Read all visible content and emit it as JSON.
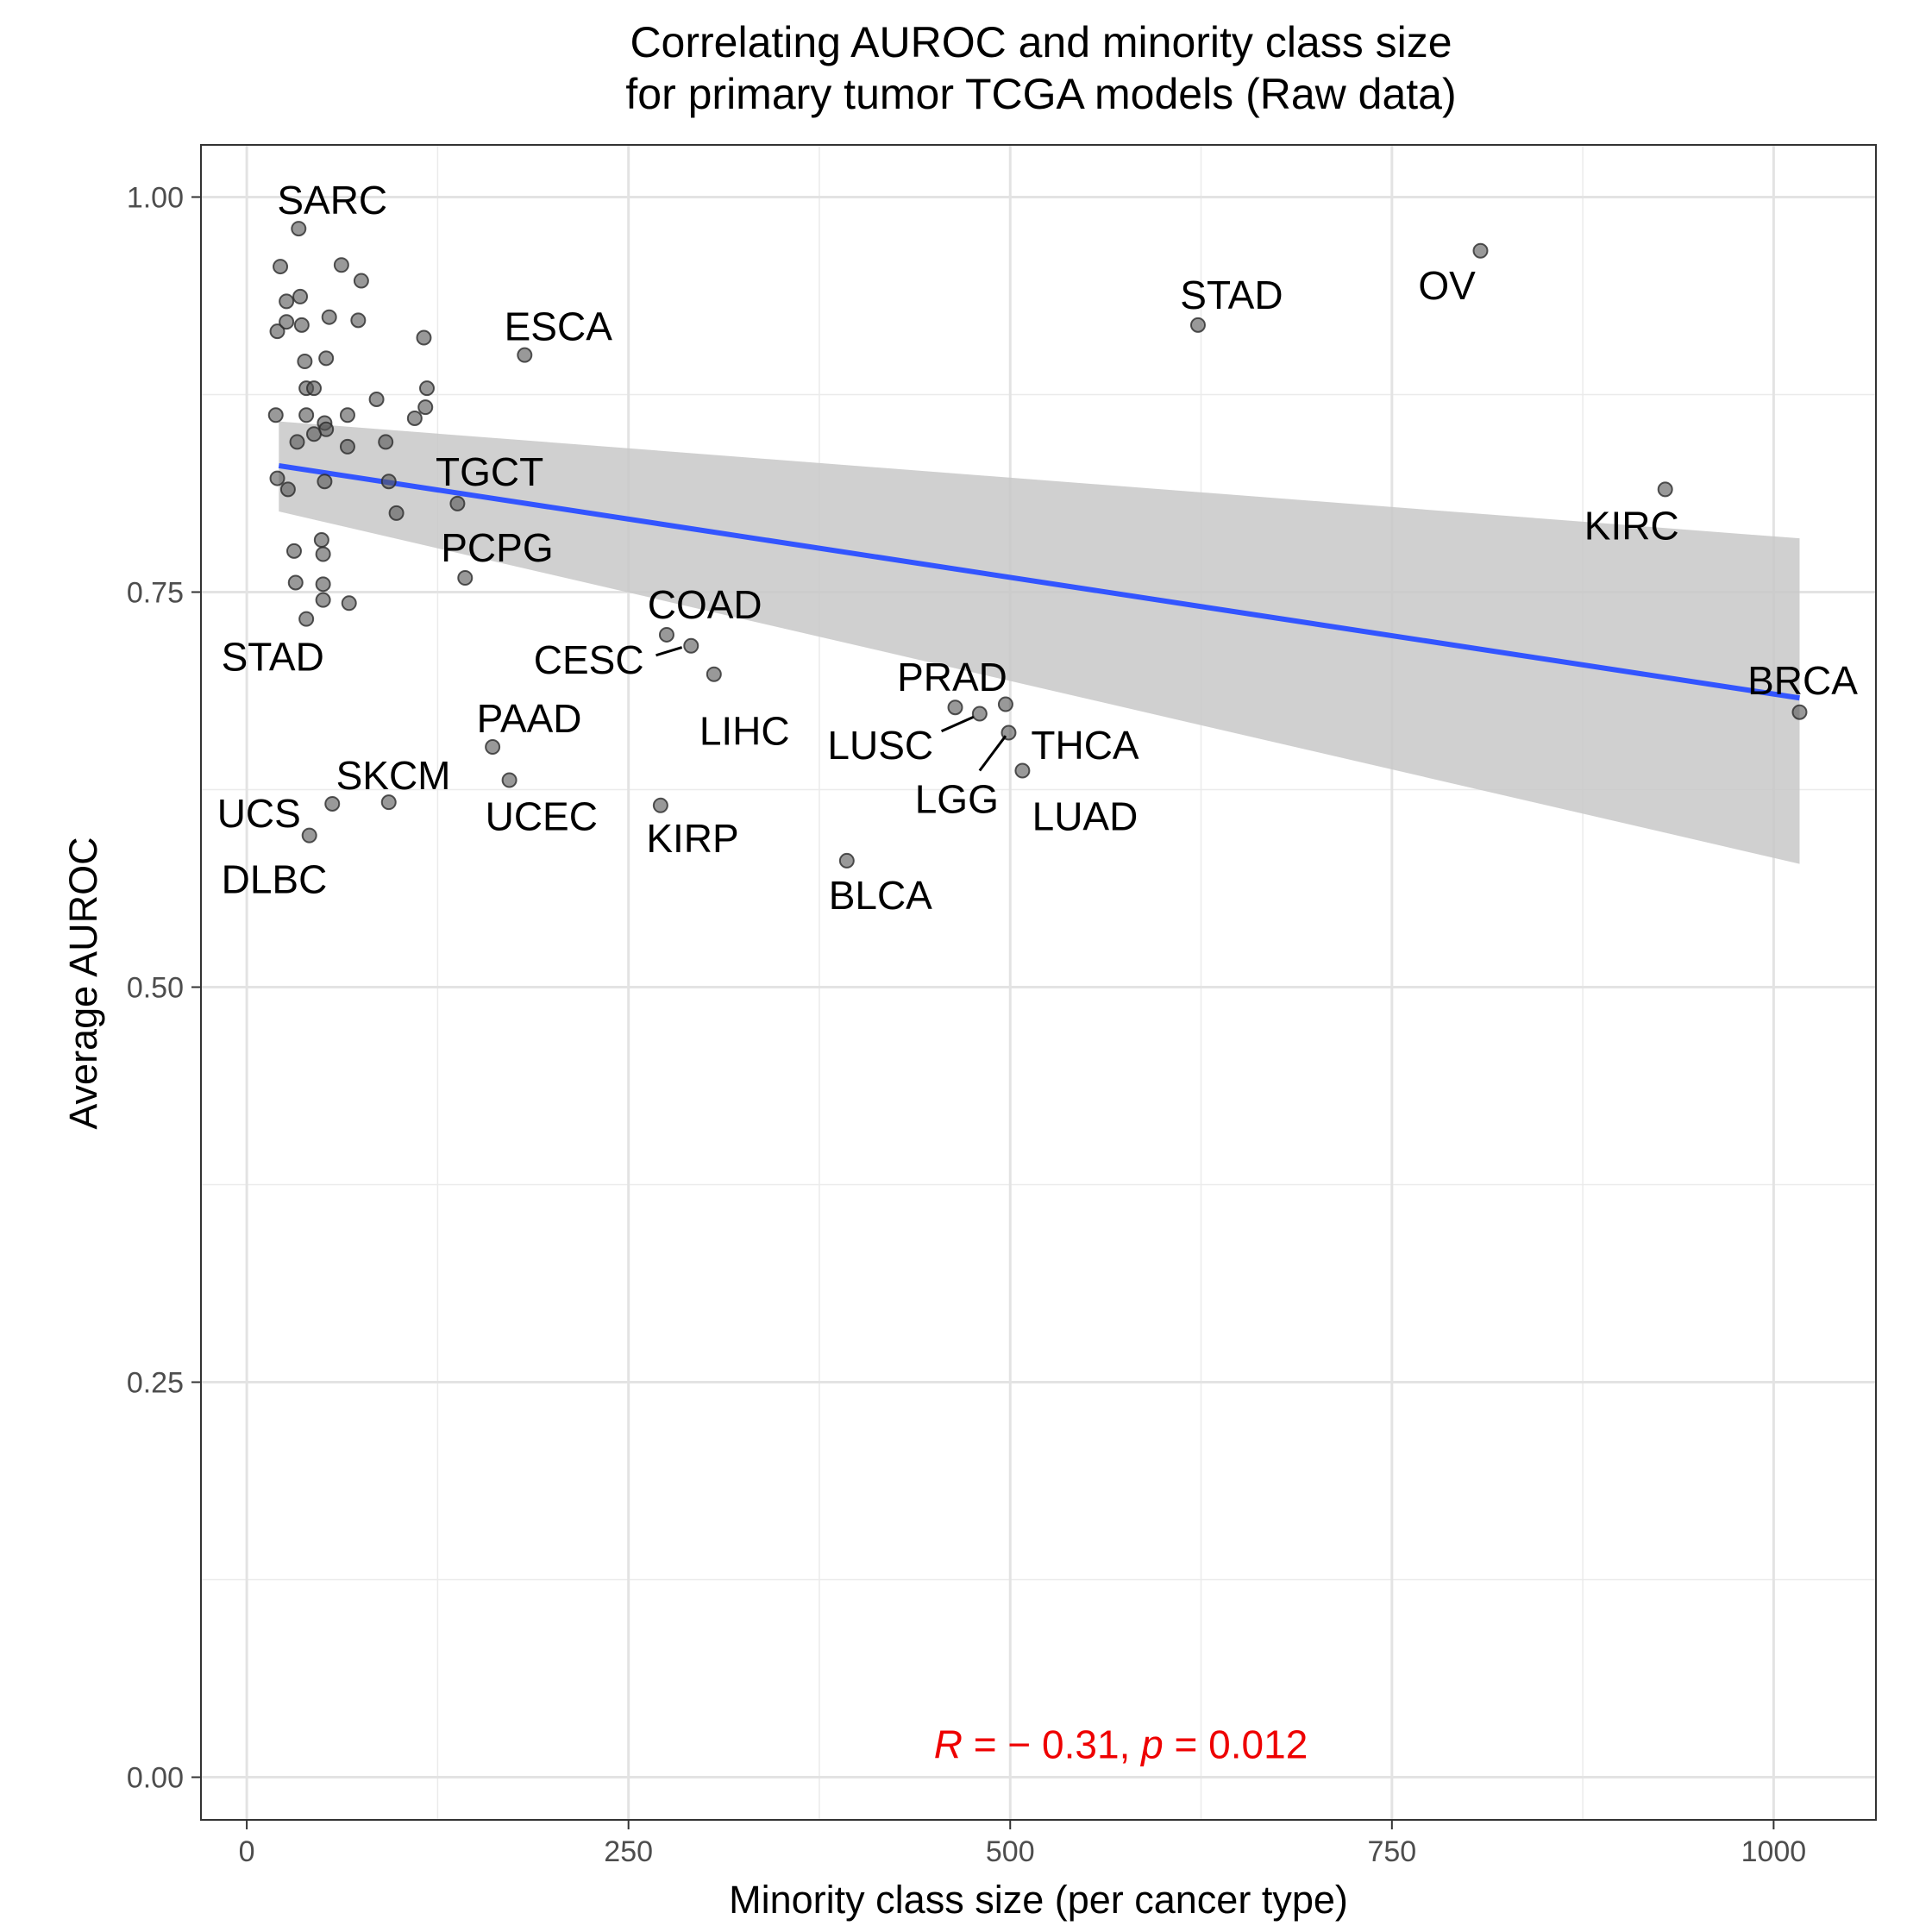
{
  "chart_data": {
    "type": "scatter",
    "title_lines": [
      "Correlating AUROC and minority class size",
      "for primary tumor TCGA models (Raw data)"
    ],
    "xlabel": "Minority class size (per cancer type)",
    "ylabel": "Average AUROC",
    "xlim": [
      -30,
      1067
    ],
    "ylim": [
      -0.027,
      1.033
    ],
    "x_ticks": [
      0,
      250,
      500,
      750,
      1000
    ],
    "x_tick_labels": [
      "0",
      "250",
      "500",
      "750",
      "1000"
    ],
    "y_ticks": [
      0,
      0.25,
      0.5,
      0.75,
      1
    ],
    "y_tick_labels": [
      "0.00",
      "0.25",
      "0.50",
      "0.75",
      "1.00"
    ],
    "grid": true,
    "point_color": "#555555",
    "line_color": "#3355ff",
    "band_color": "#c8c8c8",
    "annotation_color": "#ee0000",
    "points": [
      {
        "x": 34,
        "y": 0.98
      },
      {
        "x": 22,
        "y": 0.956
      },
      {
        "x": 62,
        "y": 0.957
      },
      {
        "x": 75,
        "y": 0.947
      },
      {
        "x": 26,
        "y": 0.934
      },
      {
        "x": 35,
        "y": 0.937
      },
      {
        "x": 54,
        "y": 0.924
      },
      {
        "x": 73,
        "y": 0.922
      },
      {
        "x": 20,
        "y": 0.915
      },
      {
        "x": 26,
        "y": 0.921
      },
      {
        "x": 36,
        "y": 0.919
      },
      {
        "x": 116,
        "y": 0.911
      },
      {
        "x": 38,
        "y": 0.896
      },
      {
        "x": 52,
        "y": 0.898
      },
      {
        "x": 39,
        "y": 0.879
      },
      {
        "x": 44,
        "y": 0.879
      },
      {
        "x": 118,
        "y": 0.879
      },
      {
        "x": 85,
        "y": 0.872
      },
      {
        "x": 117,
        "y": 0.867
      },
      {
        "x": 19,
        "y": 0.862
      },
      {
        "x": 39,
        "y": 0.862
      },
      {
        "x": 66,
        "y": 0.862
      },
      {
        "x": 110,
        "y": 0.86
      },
      {
        "x": 51,
        "y": 0.857
      },
      {
        "x": 52,
        "y": 0.853
      },
      {
        "x": 44,
        "y": 0.85
      },
      {
        "x": 33,
        "y": 0.845
      },
      {
        "x": 66,
        "y": 0.842
      },
      {
        "x": 91,
        "y": 0.845
      },
      {
        "x": 20,
        "y": 0.822
      },
      {
        "x": 27,
        "y": 0.815
      },
      {
        "x": 51,
        "y": 0.82
      },
      {
        "x": 93,
        "y": 0.82
      },
      {
        "x": 138,
        "y": 0.806
      },
      {
        "x": 98,
        "y": 0.8
      },
      {
        "x": 49,
        "y": 0.783
      },
      {
        "x": 31,
        "y": 0.776
      },
      {
        "x": 50,
        "y": 0.774
      },
      {
        "x": 32,
        "y": 0.756
      },
      {
        "x": 50,
        "y": 0.755
      },
      {
        "x": 143,
        "y": 0.759
      },
      {
        "x": 50,
        "y": 0.745
      },
      {
        "x": 67,
        "y": 0.743
      },
      {
        "x": 39,
        "y": 0.733
      },
      {
        "x": 182,
        "y": 0.9
      },
      {
        "x": 275,
        "y": 0.723
      },
      {
        "x": 291,
        "y": 0.716
      },
      {
        "x": 306,
        "y": 0.698
      },
      {
        "x": 464,
        "y": 0.677
      },
      {
        "x": 480,
        "y": 0.673
      },
      {
        "x": 497,
        "y": 0.679
      },
      {
        "x": 499,
        "y": 0.661
      },
      {
        "x": 508,
        "y": 0.637
      },
      {
        "x": 161,
        "y": 0.652
      },
      {
        "x": 172,
        "y": 0.631
      },
      {
        "x": 93,
        "y": 0.617
      },
      {
        "x": 56,
        "y": 0.616
      },
      {
        "x": 41,
        "y": 0.596
      },
      {
        "x": 271,
        "y": 0.615
      },
      {
        "x": 393,
        "y": 0.58
      },
      {
        "x": 623,
        "y": 0.919
      },
      {
        "x": 808,
        "y": 0.966
      },
      {
        "x": 929,
        "y": 0.815
      },
      {
        "x": 1017,
        "y": 0.674
      }
    ],
    "labels": [
      {
        "text": "SARC",
        "x": 56,
        "y": 0.996
      },
      {
        "text": "ESCA",
        "x": 204,
        "y": 0.916
      },
      {
        "text": "TGCT",
        "x": 159,
        "y": 0.824
      },
      {
        "text": "PCPG",
        "x": 164,
        "y": 0.776
      },
      {
        "text": "STAD",
        "x": 17,
        "y": 0.707
      },
      {
        "text": "COAD",
        "x": 300,
        "y": 0.74
      },
      {
        "text": "CESC",
        "x": 224,
        "y": 0.705
      },
      {
        "text": "LIHC",
        "x": 326,
        "y": 0.66
      },
      {
        "text": "PRAD",
        "x": 462,
        "y": 0.694
      },
      {
        "text": "LUSC",
        "x": 415,
        "y": 0.651
      },
      {
        "text": "THCA",
        "x": 549,
        "y": 0.651
      },
      {
        "text": "LGG",
        "x": 465,
        "y": 0.617
      },
      {
        "text": "LUAD",
        "x": 549,
        "y": 0.606
      },
      {
        "text": "PAAD",
        "x": 185,
        "y": 0.668
      },
      {
        "text": "SKCM",
        "x": 96,
        "y": 0.632
      },
      {
        "text": "UCS",
        "x": 8,
        "y": 0.608
      },
      {
        "text": "UCEC",
        "x": 193,
        "y": 0.606
      },
      {
        "text": "KIRP",
        "x": 292,
        "y": 0.592
      },
      {
        "text": "DLBC",
        "x": 18,
        "y": 0.566
      },
      {
        "text": "BLCA",
        "x": 415,
        "y": 0.556
      },
      {
        "text": "STAD",
        "x": 645,
        "y": 0.936
      },
      {
        "text": "OV",
        "x": 786,
        "y": 0.942
      },
      {
        "text": "KIRC",
        "x": 907,
        "y": 0.79
      },
      {
        "text": "BRCA",
        "x": 1019,
        "y": 0.692
      }
    ],
    "segments": [
      {
        "x1": 268,
        "y1": 0.71,
        "x2": 285,
        "y2": 0.715
      },
      {
        "x1": 455,
        "y1": 0.662,
        "x2": 476,
        "y2": 0.671
      },
      {
        "x1": 480,
        "y1": 0.637,
        "x2": 497,
        "y2": 0.659
      }
    ],
    "regression": {
      "x": [
        21,
        1017
      ],
      "y": [
        0.83,
        0.683
      ],
      "band_upper": [
        0.858,
        0.784
      ],
      "band_lower": [
        0.801,
        0.578
      ]
    },
    "annotation": {
      "r_symbol": "R",
      "r_text": " = − 0.31, ",
      "p_symbol": "p",
      "p_text": " = 0.012",
      "x": 450,
      "y": 0.012
    }
  }
}
